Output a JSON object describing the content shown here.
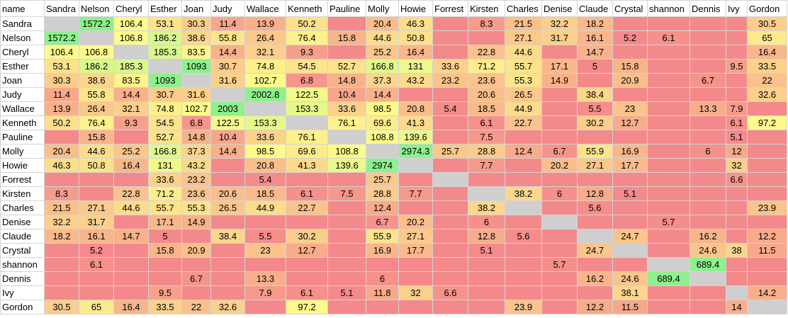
{
  "table": {
    "columns": [
      "name",
      "Sandra",
      "Nelson",
      "Cheryl",
      "Esther",
      "Joan",
      "Judy",
      "Wallace",
      "Kenneth",
      "Pauline",
      "Molly",
      "Howie",
      "Forrest",
      "Kirsten",
      "Charles",
      "Denise",
      "Claude",
      "Crystal",
      "shannon",
      "Dennis",
      "Ivy",
      "Gordon"
    ],
    "rows": [
      {
        "name": "Sandra",
        "cells": [
          null,
          1572.2,
          106.4,
          53.1,
          30.3,
          11.4,
          13.9,
          50.2,
          null,
          20.4,
          46.3,
          null,
          8.3,
          21.5,
          32.2,
          18.2,
          null,
          null,
          null,
          null,
          30.5
        ]
      },
      {
        "name": "Nelson",
        "cells": [
          1572.2,
          null,
          106.8,
          186.2,
          38.6,
          55.8,
          26.4,
          76.4,
          15.8,
          44.6,
          50.8,
          null,
          null,
          27.1,
          31.7,
          16.1,
          5.2,
          6.1,
          null,
          null,
          65
        ]
      },
      {
        "name": "Cheryl",
        "cells": [
          106.4,
          106.8,
          null,
          185.3,
          83.5,
          14.4,
          32.1,
          9.3,
          null,
          25.2,
          16.4,
          null,
          22.8,
          44.6,
          null,
          14.7,
          null,
          null,
          null,
          null,
          16.4
        ]
      },
      {
        "name": "Esther",
        "cells": [
          53.1,
          186.2,
          185.3,
          null,
          1093,
          30.7,
          74.8,
          54.5,
          52.7,
          166.8,
          131,
          33.6,
          71.2,
          55.7,
          17.1,
          5,
          15.8,
          null,
          null,
          9.5,
          33.5
        ]
      },
      {
        "name": "Joan",
        "cells": [
          30.3,
          38.6,
          83.5,
          1093,
          null,
          31.6,
          102.7,
          6.8,
          14.8,
          37.3,
          43.2,
          23.2,
          23.6,
          55.3,
          14.9,
          null,
          20.9,
          null,
          6.7,
          null,
          22
        ]
      },
      {
        "name": "Judy",
        "cells": [
          11.4,
          55.8,
          14.4,
          30.7,
          31.6,
          null,
          2002.8,
          122.5,
          10.4,
          14.4,
          null,
          null,
          20.6,
          26.5,
          null,
          38.4,
          null,
          null,
          null,
          null,
          32.6
        ]
      },
      {
        "name": "Wallace",
        "cells": [
          13.9,
          26.4,
          32.1,
          74.8,
          102.7,
          2003,
          null,
          153.3,
          33.6,
          98.5,
          20.8,
          5.4,
          18.5,
          44.9,
          null,
          5.5,
          23,
          null,
          13.3,
          7.9,
          null
        ]
      },
      {
        "name": "Kenneth",
        "cells": [
          50.2,
          76.4,
          9.3,
          54.5,
          6.8,
          122.5,
          153.3,
          null,
          76.1,
          69.6,
          41.3,
          null,
          6.1,
          22.7,
          null,
          30.2,
          12.7,
          null,
          null,
          6.1,
          97.2
        ]
      },
      {
        "name": "Pauline",
        "cells": [
          null,
          15.8,
          null,
          52.7,
          14.8,
          10.4,
          33.6,
          76.1,
          null,
          108.8,
          139.6,
          null,
          7.5,
          null,
          null,
          null,
          null,
          null,
          null,
          5.1,
          null
        ]
      },
      {
        "name": "Molly",
        "cells": [
          20.4,
          44.6,
          25.2,
          166.8,
          37.3,
          14.4,
          98.5,
          69.6,
          108.8,
          null,
          2974.3,
          25.7,
          28.8,
          12.4,
          6.7,
          55.9,
          16.9,
          null,
          6,
          12,
          null
        ]
      },
      {
        "name": "Howie",
        "cells": [
          46.3,
          50.8,
          16.4,
          131,
          43.2,
          null,
          20.8,
          41.3,
          139.6,
          2974,
          null,
          null,
          7.7,
          null,
          20.2,
          27.1,
          17.7,
          null,
          null,
          32,
          null
        ]
      },
      {
        "name": "Forrest",
        "cells": [
          null,
          null,
          null,
          33.6,
          23.2,
          null,
          5.4,
          null,
          null,
          25.7,
          null,
          null,
          null,
          null,
          null,
          null,
          null,
          null,
          null,
          6.6,
          null
        ]
      },
      {
        "name": "Kirsten",
        "cells": [
          8.3,
          null,
          22.8,
          71.2,
          23.6,
          20.6,
          18.5,
          6.1,
          7.5,
          28.8,
          7.7,
          null,
          null,
          38.2,
          6,
          12.8,
          5.1,
          null,
          null,
          null,
          null
        ]
      },
      {
        "name": "Charles",
        "cells": [
          21.5,
          27.1,
          44.6,
          55.7,
          55.3,
          26.5,
          44.9,
          22.7,
          null,
          12.4,
          null,
          null,
          38.2,
          null,
          null,
          5.6,
          null,
          null,
          null,
          null,
          23.9
        ]
      },
      {
        "name": "Denise",
        "cells": [
          32.2,
          31.7,
          null,
          17.1,
          14.9,
          null,
          null,
          null,
          null,
          6.7,
          20.2,
          null,
          6,
          null,
          null,
          null,
          null,
          5.7,
          null,
          null,
          null
        ]
      },
      {
        "name": "Claude",
        "cells": [
          18.2,
          16.1,
          14.7,
          5,
          null,
          38.4,
          5.5,
          30.2,
          null,
          55.9,
          27.1,
          null,
          12.8,
          5.6,
          null,
          null,
          24.7,
          null,
          16.2,
          null,
          12.2
        ]
      },
      {
        "name": "Crystal",
        "cells": [
          null,
          5.2,
          null,
          15.8,
          20.9,
          null,
          23,
          12.7,
          null,
          16.9,
          17.7,
          null,
          5.1,
          null,
          null,
          24.7,
          null,
          null,
          24.6,
          38,
          11.5
        ]
      },
      {
        "name": "shannon",
        "cells": [
          null,
          6.1,
          null,
          null,
          null,
          null,
          null,
          null,
          null,
          null,
          null,
          null,
          null,
          null,
          5.7,
          null,
          null,
          null,
          689.4,
          null,
          null
        ]
      },
      {
        "name": "Dennis",
        "cells": [
          null,
          null,
          null,
          null,
          6.7,
          null,
          13.3,
          null,
          null,
          6,
          null,
          null,
          null,
          null,
          null,
          16.2,
          24.6,
          689.4,
          null,
          null,
          null
        ]
      },
      {
        "name": "Ivy",
        "cells": [
          null,
          null,
          null,
          9.5,
          null,
          null,
          7.9,
          6.1,
          5.1,
          11.8,
          32,
          6.6,
          null,
          null,
          null,
          null,
          38.1,
          null,
          null,
          null,
          14.2
        ]
      },
      {
        "name": "Gordon",
        "cells": [
          30.5,
          65,
          16.4,
          33.5,
          22,
          32.6,
          null,
          97.2,
          null,
          null,
          null,
          null,
          null,
          23.9,
          null,
          12.2,
          11.5,
          null,
          null,
          14,
          null
        ]
      }
    ]
  }
}
